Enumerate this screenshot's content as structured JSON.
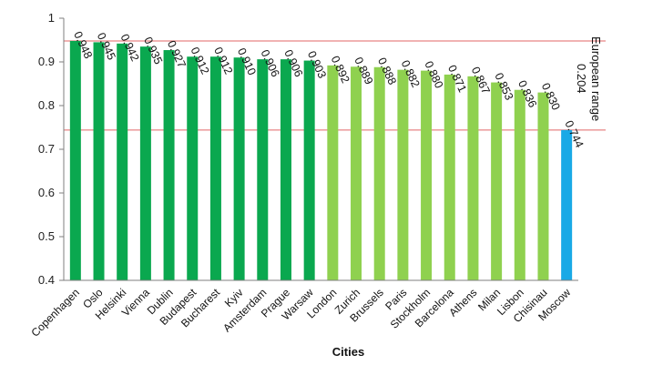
{
  "chart_data": {
    "type": "bar",
    "title": "",
    "xlabel": "Cities",
    "ylabel": "",
    "ylim": [
      0.4,
      1.0
    ],
    "yticks": [
      "0.4",
      "0.5",
      "0.6",
      "0.7",
      "0.8",
      "0.9",
      "1"
    ],
    "categories": [
      "Copenhagen",
      "Oslo",
      "Helsinki",
      "Vienna",
      "Dublin",
      "Budapest",
      "Bucharest",
      "Kyiv",
      "Amsterdam",
      "Prague",
      "Warsaw",
      "London",
      "Zurich",
      "Brussels",
      "Paris",
      "Stockholm",
      "Barcelona",
      "Athens",
      "Milan",
      "Lisbon",
      "Chisinau",
      "Moscow"
    ],
    "values": [
      0.948,
      0.945,
      0.942,
      0.935,
      0.927,
      0.912,
      0.912,
      0.91,
      0.906,
      0.906,
      0.903,
      0.892,
      0.889,
      0.888,
      0.882,
      0.88,
      0.871,
      0.867,
      0.853,
      0.836,
      0.83,
      0.744
    ],
    "labels": [
      "0.948",
      "0.945",
      "0.942",
      "0.935",
      "0.927",
      "0.912",
      "0.912",
      "0.910",
      "0.906",
      "0.906",
      "0.903",
      "0.892",
      "0.889",
      "0.888",
      "0.882",
      "0.880",
      "0.871",
      "0.867",
      "0.853",
      "0.836",
      "0.830",
      "0.744"
    ],
    "groups": [
      "dark",
      "dark",
      "dark",
      "dark",
      "dark",
      "dark",
      "dark",
      "dark",
      "dark",
      "dark",
      "dark",
      "light",
      "light",
      "light",
      "light",
      "light",
      "light",
      "light",
      "light",
      "light",
      "light",
      "blue"
    ],
    "colors": {
      "dark": "#0aa84f",
      "light": "#8fd14f",
      "blue": "#19a9e6",
      "refline": "#e06666",
      "axis": "#7f7f7f"
    },
    "reference_lines": [
      0.948,
      0.744
    ],
    "range_annotation": {
      "label": "European range",
      "value": "0.204"
    }
  }
}
